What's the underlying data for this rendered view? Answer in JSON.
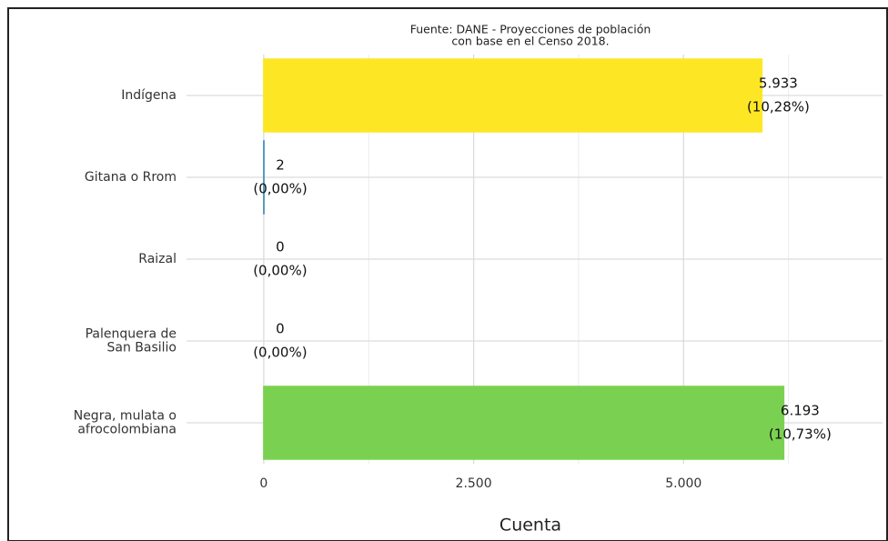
{
  "chart_data": {
    "type": "bar",
    "orientation": "horizontal",
    "title": "Fuente: DANE - Proyecciones de población",
    "subtitle": "con base en el Censo 2018.",
    "x_label": "Cuenta",
    "categories": [
      "Indígena",
      "Gitana o Rrom",
      "Raizal",
      "Palenquera de\nSan Basilio",
      "Negra, mulata o\nafrocolombiana"
    ],
    "values": [
      5933,
      2,
      0,
      0,
      6193
    ],
    "value_labels": [
      "5.933",
      "2",
      "0",
      "0",
      "6.193"
    ],
    "share_labels": [
      "(10,28%)",
      "(0,00%)",
      "(0,00%)",
      "(0,00%)",
      "(10,73%)"
    ],
    "colors": [
      "#fde725",
      "#3b8bb8",
      "#d6a3cc",
      "#6e1616",
      "#7ad151"
    ],
    "xlim": [
      -920,
      7370
    ],
    "xticks": [
      0,
      {
        "value": 2500,
        "label": "2.500"
      },
      {
        "value": 5000,
        "label": "5.000"
      }
    ],
    "xminor_ticks": [
      1250,
      3750,
      6250
    ],
    "grid": true
  }
}
